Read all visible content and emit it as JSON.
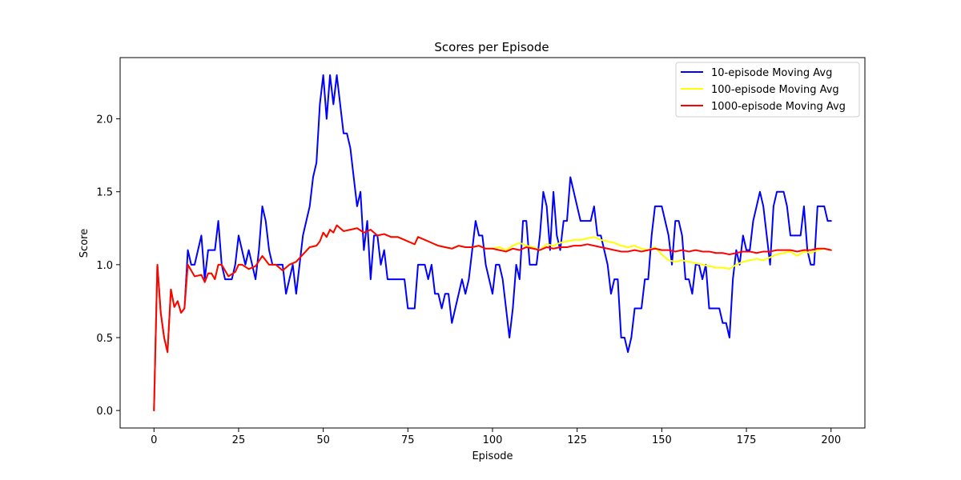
{
  "chart_data": {
    "type": "line",
    "title": "Scores per Episode",
    "xlabel": "Episode",
    "ylabel": "Score",
    "xlim": [
      -10,
      210
    ],
    "ylim": [
      -0.12,
      2.42
    ],
    "xticks": [
      0,
      25,
      50,
      75,
      100,
      125,
      150,
      175,
      200
    ],
    "yticks": [
      0.0,
      0.5,
      1.0,
      1.5,
      2.0
    ],
    "xtick_labels": [
      "0",
      "25",
      "50",
      "75",
      "100",
      "125",
      "150",
      "175",
      "200"
    ],
    "ytick_labels": [
      "0.0",
      "0.5",
      "1.0",
      "1.5",
      "2.0"
    ],
    "legend_position": "top-right",
    "grid": false,
    "series": [
      {
        "name": "10-episode Moving Avg",
        "color": "#0000ff",
        "x": [
          0,
          1,
          2,
          3,
          4,
          5,
          6,
          7,
          8,
          9,
          10,
          11,
          12,
          13,
          14,
          15,
          16,
          17,
          18,
          19,
          20,
          21,
          22,
          23,
          24,
          25,
          26,
          27,
          28,
          29,
          30,
          31,
          32,
          33,
          34,
          35,
          36,
          37,
          38,
          39,
          40,
          41,
          42,
          43,
          44,
          45,
          46,
          47,
          48,
          49,
          50,
          51,
          52,
          53,
          54,
          55,
          56,
          57,
          58,
          59,
          60,
          61,
          62,
          63,
          64,
          65,
          66,
          67,
          68,
          69,
          70,
          71,
          72,
          73,
          74,
          75,
          76,
          77,
          78,
          79,
          80,
          81,
          82,
          83,
          84,
          85,
          86,
          87,
          88,
          89,
          90,
          91,
          92,
          93,
          94,
          95,
          96,
          97,
          98,
          99,
          100,
          101,
          102,
          103,
          104,
          105,
          106,
          107,
          108,
          109,
          110,
          111,
          112,
          113,
          114,
          115,
          116,
          117,
          118,
          119,
          120,
          121,
          122,
          123,
          124,
          125,
          126,
          127,
          128,
          129,
          130,
          131,
          132,
          133,
          134,
          135,
          136,
          137,
          138,
          139,
          140,
          141,
          142,
          143,
          144,
          145,
          146,
          147,
          148,
          149,
          150,
          151,
          152,
          153,
          154,
          155,
          156,
          157,
          158,
          159,
          160,
          161,
          162,
          163,
          164,
          165,
          166,
          167,
          168,
          169,
          170,
          171,
          172,
          173,
          174,
          175,
          176,
          177,
          178,
          179,
          180,
          181,
          182,
          183,
          184,
          185,
          186,
          187,
          188,
          189,
          190,
          191,
          192,
          193,
          194,
          195,
          196,
          197,
          198,
          199,
          200
        ],
        "y": [
          0.0,
          1.0,
          0.67,
          0.5,
          0.4,
          0.83,
          0.71,
          0.75,
          0.67,
          0.7,
          1.1,
          1.0,
          1.0,
          1.1,
          1.2,
          0.9,
          1.1,
          1.1,
          1.1,
          1.3,
          1.0,
          0.9,
          0.9,
          0.9,
          1.0,
          1.2,
          1.1,
          1.0,
          1.1,
          1.0,
          0.9,
          1.1,
          1.4,
          1.3,
          1.1,
          1.0,
          1.0,
          1.0,
          1.0,
          0.8,
          0.9,
          1.0,
          0.8,
          1.0,
          1.2,
          1.3,
          1.4,
          1.6,
          1.7,
          2.1,
          2.3,
          2.0,
          2.3,
          2.1,
          2.3,
          2.1,
          1.9,
          1.9,
          1.8,
          1.6,
          1.4,
          1.5,
          1.1,
          1.3,
          0.9,
          1.2,
          1.2,
          1.0,
          1.1,
          0.9,
          0.9,
          0.9,
          0.9,
          0.9,
          0.9,
          0.7,
          0.7,
          0.7,
          1.0,
          1.0,
          1.0,
          0.9,
          1.0,
          0.8,
          0.8,
          0.7,
          0.8,
          0.8,
          0.6,
          0.7,
          0.8,
          0.9,
          0.8,
          0.9,
          1.1,
          1.3,
          1.2,
          1.2,
          1.0,
          0.9,
          0.8,
          1.0,
          1.0,
          0.9,
          0.7,
          0.5,
          0.7,
          1.0,
          0.9,
          1.3,
          1.3,
          1.0,
          1.0,
          1.0,
          1.2,
          1.5,
          1.4,
          1.1,
          1.5,
          1.2,
          1.1,
          1.3,
          1.3,
          1.6,
          1.5,
          1.4,
          1.3,
          1.3,
          1.3,
          1.3,
          1.4,
          1.2,
          1.2,
          1.1,
          1.0,
          0.8,
          0.9,
          0.9,
          0.5,
          0.5,
          0.4,
          0.5,
          0.7,
          0.7,
          0.7,
          0.9,
          0.9,
          1.2,
          1.4,
          1.4,
          1.4,
          1.3,
          1.2,
          1.0,
          1.3,
          1.3,
          1.2,
          0.9,
          0.9,
          0.8,
          1.0,
          1.0,
          0.9,
          1.0,
          0.7,
          0.7,
          0.7,
          0.7,
          0.6,
          0.6,
          0.5,
          0.9,
          1.1,
          1.0,
          1.2,
          1.1,
          1.1,
          1.3,
          1.4,
          1.5,
          1.4,
          1.2,
          1.0,
          1.4,
          1.5,
          1.5,
          1.5,
          1.4,
          1.2,
          1.2,
          1.2,
          1.2,
          1.4,
          1.1,
          1.0,
          1.0,
          1.4,
          1.4,
          1.4,
          1.3,
          1.3
        ]
      },
      {
        "name": "100-episode Moving Avg",
        "color": "#ffff00",
        "x": [
          0,
          1,
          2,
          3,
          4,
          5,
          6,
          7,
          8,
          9,
          10,
          12,
          14,
          15,
          16,
          17,
          18,
          19,
          20,
          22,
          24,
          25,
          26,
          28,
          30,
          32,
          34,
          36,
          38,
          40,
          42,
          44,
          46,
          48,
          49,
          50,
          51,
          52,
          53,
          54,
          55,
          56,
          58,
          60,
          62,
          64,
          66,
          68,
          70,
          72,
          74,
          76,
          77,
          78,
          80,
          82,
          84,
          86,
          88,
          90,
          92,
          94,
          96,
          98,
          100,
          102,
          104,
          106,
          108,
          110,
          112,
          114,
          116,
          118,
          120,
          122,
          124,
          126,
          128,
          130,
          132,
          134,
          136,
          138,
          140,
          142,
          144,
          146,
          148,
          150,
          152,
          154,
          156,
          158,
          160,
          162,
          164,
          166,
          168,
          170,
          172,
          174,
          176,
          178,
          180,
          182,
          184,
          186,
          188,
          190,
          192,
          194,
          196,
          198,
          200
        ],
        "y": [
          0.0,
          1.0,
          0.67,
          0.5,
          0.4,
          0.83,
          0.71,
          0.75,
          0.67,
          0.7,
          1.0,
          0.92,
          0.93,
          0.88,
          0.94,
          0.94,
          0.9,
          1.0,
          1.0,
          0.92,
          0.95,
          1.0,
          1.0,
          0.97,
          0.99,
          1.06,
          1.0,
          1.0,
          0.96,
          1.0,
          1.02,
          1.07,
          1.12,
          1.13,
          1.16,
          1.22,
          1.19,
          1.24,
          1.22,
          1.27,
          1.25,
          1.23,
          1.24,
          1.25,
          1.22,
          1.24,
          1.2,
          1.21,
          1.19,
          1.19,
          1.17,
          1.15,
          1.14,
          1.19,
          1.17,
          1.15,
          1.13,
          1.12,
          1.11,
          1.13,
          1.12,
          1.12,
          1.13,
          1.11,
          1.11,
          1.12,
          1.1,
          1.13,
          1.15,
          1.13,
          1.12,
          1.1,
          1.14,
          1.13,
          1.15,
          1.16,
          1.17,
          1.17,
          1.18,
          1.19,
          1.17,
          1.16,
          1.15,
          1.13,
          1.12,
          1.13,
          1.11,
          1.1,
          1.12,
          1.07,
          1.03,
          1.02,
          1.03,
          1.02,
          1.01,
          1.0,
          0.99,
          0.98,
          0.98,
          0.97,
          1.0,
          1.02,
          1.03,
          1.04,
          1.03,
          1.05,
          1.07,
          1.08,
          1.09,
          1.06,
          1.09,
          1.08,
          1.1,
          1.11,
          1.1
        ]
      },
      {
        "name": "1000-episode Moving Avg",
        "color": "#ff0000",
        "x": [
          0,
          1,
          2,
          3,
          4,
          5,
          6,
          7,
          8,
          9,
          10,
          12,
          14,
          15,
          16,
          17,
          18,
          19,
          20,
          22,
          24,
          25,
          26,
          28,
          30,
          32,
          34,
          36,
          38,
          40,
          42,
          44,
          46,
          48,
          49,
          50,
          51,
          52,
          53,
          54,
          55,
          56,
          58,
          60,
          62,
          64,
          66,
          68,
          70,
          72,
          74,
          76,
          77,
          78,
          80,
          82,
          84,
          86,
          88,
          90,
          92,
          94,
          96,
          98,
          100,
          102,
          104,
          106,
          108,
          110,
          112,
          114,
          116,
          118,
          120,
          122,
          124,
          126,
          128,
          130,
          132,
          134,
          136,
          138,
          140,
          142,
          144,
          146,
          148,
          150,
          152,
          154,
          156,
          158,
          160,
          162,
          164,
          166,
          168,
          170,
          172,
          174,
          176,
          178,
          180,
          182,
          184,
          186,
          188,
          190,
          192,
          194,
          196,
          198,
          200
        ],
        "y": [
          0.0,
          1.0,
          0.67,
          0.5,
          0.4,
          0.83,
          0.71,
          0.75,
          0.67,
          0.7,
          1.0,
          0.92,
          0.93,
          0.88,
          0.94,
          0.94,
          0.9,
          1.0,
          1.0,
          0.92,
          0.95,
          1.0,
          1.0,
          0.97,
          0.99,
          1.06,
          1.0,
          1.0,
          0.96,
          1.0,
          1.02,
          1.07,
          1.12,
          1.13,
          1.16,
          1.22,
          1.19,
          1.24,
          1.22,
          1.27,
          1.25,
          1.23,
          1.24,
          1.25,
          1.22,
          1.24,
          1.2,
          1.21,
          1.19,
          1.19,
          1.17,
          1.15,
          1.14,
          1.19,
          1.17,
          1.15,
          1.13,
          1.12,
          1.11,
          1.13,
          1.12,
          1.12,
          1.13,
          1.11,
          1.11,
          1.1,
          1.09,
          1.11,
          1.1,
          1.12,
          1.11,
          1.1,
          1.12,
          1.11,
          1.12,
          1.12,
          1.13,
          1.13,
          1.14,
          1.13,
          1.12,
          1.11,
          1.1,
          1.09,
          1.09,
          1.1,
          1.09,
          1.1,
          1.11,
          1.1,
          1.1,
          1.09,
          1.1,
          1.09,
          1.1,
          1.09,
          1.09,
          1.08,
          1.08,
          1.07,
          1.08,
          1.09,
          1.09,
          1.08,
          1.09,
          1.09,
          1.1,
          1.1,
          1.1,
          1.09,
          1.1,
          1.1,
          1.11,
          1.11,
          1.1
        ]
      }
    ]
  }
}
